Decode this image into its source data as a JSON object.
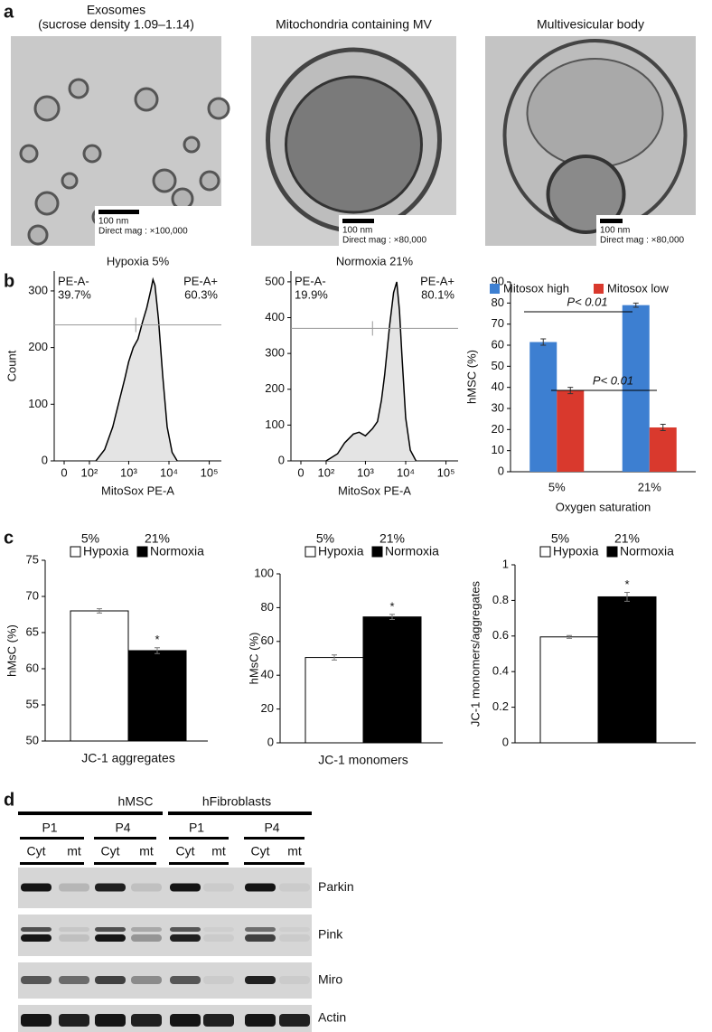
{
  "panel_labels": [
    "a",
    "b",
    "c",
    "d"
  ],
  "images": [
    {
      "title": [
        "Exosomes",
        "(sucrose density 1.09–1.14)"
      ],
      "scale_bar": "100 nm",
      "magnification": "Direct mag : ×100,000"
    },
    {
      "title": [
        "Mitochondria containing MV"
      ],
      "scale_bar": "100 nm",
      "magnification": "Direct mag : ×80,000"
    },
    {
      "title": [
        "Multivesicular body"
      ],
      "scale_bar": "100 nm",
      "magnification": "Direct mag : ×80,000"
    }
  ],
  "chart_data": [
    {
      "type": "area",
      "title": "Hypoxia 5%",
      "xlabel": "MitoSox PE-A",
      "ylabel": "Count",
      "xscale": "asinh",
      "color": "#e4e4e4",
      "x": [
        150,
        250,
        400,
        600,
        800,
        1000,
        1300,
        1700,
        2200,
        2800,
        3500,
        4000,
        4500,
        5500,
        7000,
        9000,
        12000,
        16000
      ],
      "values": [
        0,
        20,
        60,
        110,
        145,
        175,
        200,
        215,
        245,
        270,
        300,
        320,
        310,
        250,
        150,
        60,
        15,
        0
      ],
      "xlim": [
        -30,
        200000
      ],
      "xticks": [
        0,
        {
          "value": 100,
          "label": "10²"
        },
        {
          "value": 1000,
          "label": "10³"
        },
        {
          "value": 10000,
          "label": "10⁴"
        },
        {
          "value": 100000,
          "label": "10⁵"
        }
      ],
      "ylim": [
        0,
        335
      ],
      "yticks": [
        0,
        100,
        200,
        300
      ],
      "gate": {
        "x": 1500,
        "y": 240
      },
      "annotations": [
        "PE-A-",
        "39.7%",
        "PE-A+",
        "60.3%"
      ]
    },
    {
      "type": "area",
      "title": "Normoxia 21%",
      "xlabel": "MitoSox PE-A",
      "xscale": "asinh",
      "color": "#e4e4e4",
      "x": [
        100,
        200,
        300,
        500,
        700,
        1000,
        1500,
        2000,
        2500,
        3000,
        4000,
        5000,
        6000,
        7000,
        8000,
        10000,
        13000,
        18000
      ],
      "values": [
        0,
        20,
        50,
        75,
        80,
        70,
        90,
        110,
        170,
        240,
        380,
        470,
        500,
        420,
        300,
        120,
        30,
        0
      ],
      "xlim": [
        -30,
        200000
      ],
      "xticks": [
        0,
        {
          "value": 100,
          "label": "10²"
        },
        {
          "value": 1000,
          "label": "10³"
        },
        {
          "value": 10000,
          "label": "10⁴"
        },
        {
          "value": 100000,
          "label": "10⁵"
        }
      ],
      "ylim": [
        0,
        530
      ],
      "yticks": [
        0,
        100,
        200,
        300,
        400,
        500
      ],
      "gate": {
        "x": 1500,
        "y": 370
      },
      "annotations": [
        "PE-A-",
        "19.9%",
        "PE-A+",
        "80.1%"
      ]
    },
    {
      "type": "bar",
      "xlabel": "Oxygen saturation",
      "ylabel": "hMSC (%)",
      "categories": [
        "5%",
        "21%"
      ],
      "series": [
        {
          "name": "Mitosox high",
          "color": "#3d7fd1",
          "values": [
            61.5,
            79
          ],
          "errors": [
            1.5,
            1
          ]
        },
        {
          "name": "Mitosox low",
          "color": "#d9392d",
          "values": [
            38.5,
            21
          ],
          "errors": [
            1.5,
            1.5
          ]
        }
      ],
      "ylim": [
        0,
        90
      ],
      "yticks": [
        0,
        10,
        20,
        30,
        40,
        50,
        60,
        70,
        80,
        90
      ],
      "annotations": [
        "P< 0.01",
        "P< 0.01"
      ]
    },
    {
      "type": "bar",
      "ylabel": "hMsC (%)",
      "categories": [
        "JC-1 aggregates"
      ],
      "legend_titles": [
        "5%",
        "21%"
      ],
      "series": [
        {
          "name": "Hypoxia",
          "color": "#ffffff",
          "values": [
            68
          ],
          "errors": [
            0.3
          ]
        },
        {
          "name": "Normoxia",
          "color": "#000000",
          "values": [
            62.5
          ],
          "errors": [
            0.4
          ]
        }
      ],
      "ylim": [
        50,
        75
      ],
      "yticks": [
        50,
        55,
        60,
        65,
        70,
        75
      ],
      "annotations": [
        "*"
      ]
    },
    {
      "type": "bar",
      "ylabel": "hMsC (%)",
      "categories": [
        "JC-1 monomers"
      ],
      "legend_titles": [
        "5%",
        "21%"
      ],
      "series": [
        {
          "name": "Hypoxia",
          "color": "#ffffff",
          "values": [
            50.5
          ],
          "errors": [
            1.5
          ]
        },
        {
          "name": "Normoxia",
          "color": "#000000",
          "values": [
            74.5
          ],
          "errors": [
            1.5
          ]
        }
      ],
      "ylim": [
        0,
        100
      ],
      "yticks": [
        0,
        20,
        40,
        60,
        80,
        100
      ],
      "annotations": [
        "*"
      ]
    },
    {
      "type": "bar",
      "ylabel": "JC-1 monomers/aggregates",
      "categories": [
        null
      ],
      "legend_titles": [
        "5%",
        "21%"
      ],
      "series": [
        {
          "name": "Hypoxia",
          "color": "#ffffff",
          "values": [
            0.595
          ],
          "errors": [
            0.008
          ]
        },
        {
          "name": "Normoxia",
          "color": "#000000",
          "values": [
            0.82
          ],
          "errors": [
            0.025
          ]
        }
      ],
      "ylim": [
        0,
        1
      ],
      "yticks": [
        0,
        0.2,
        0.4,
        0.6,
        0.8,
        1
      ],
      "annotations": [
        "*"
      ]
    }
  ],
  "blot": {
    "groups": [
      "hMSC",
      "hFibroblasts"
    ],
    "passages": [
      "P1",
      "P4",
      "P1",
      "P4"
    ],
    "fractions": [
      "Cyt",
      "mt",
      "Cyt",
      "mt",
      "Cyt",
      "mt",
      "Cyt",
      "mt"
    ],
    "rows": [
      "Parkin",
      "Pink",
      "Miro",
      "Actin"
    ]
  }
}
